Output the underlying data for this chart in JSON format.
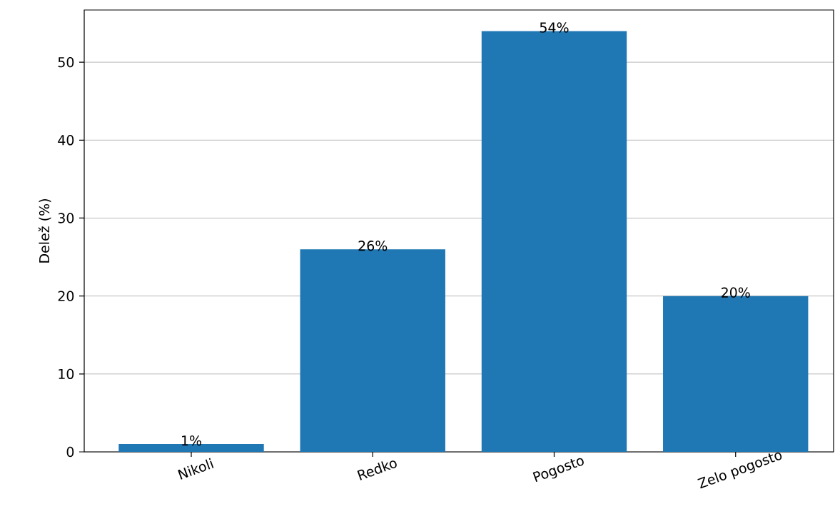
{
  "chart_data": {
    "type": "bar",
    "ylabel": "Delež (%)",
    "categories": [
      "Nikoli",
      "Redko",
      "Pogosto",
      "Zelo pogosto"
    ],
    "values": [
      1,
      26,
      54,
      20
    ],
    "color": "#1f77b4",
    "value_labels": [
      "1%",
      "26%",
      "54%",
      "20%"
    ],
    "ylim": [
      0,
      56.7
    ],
    "yticks": [
      0,
      10,
      20,
      30,
      40,
      50
    ],
    "grid": "y"
  }
}
